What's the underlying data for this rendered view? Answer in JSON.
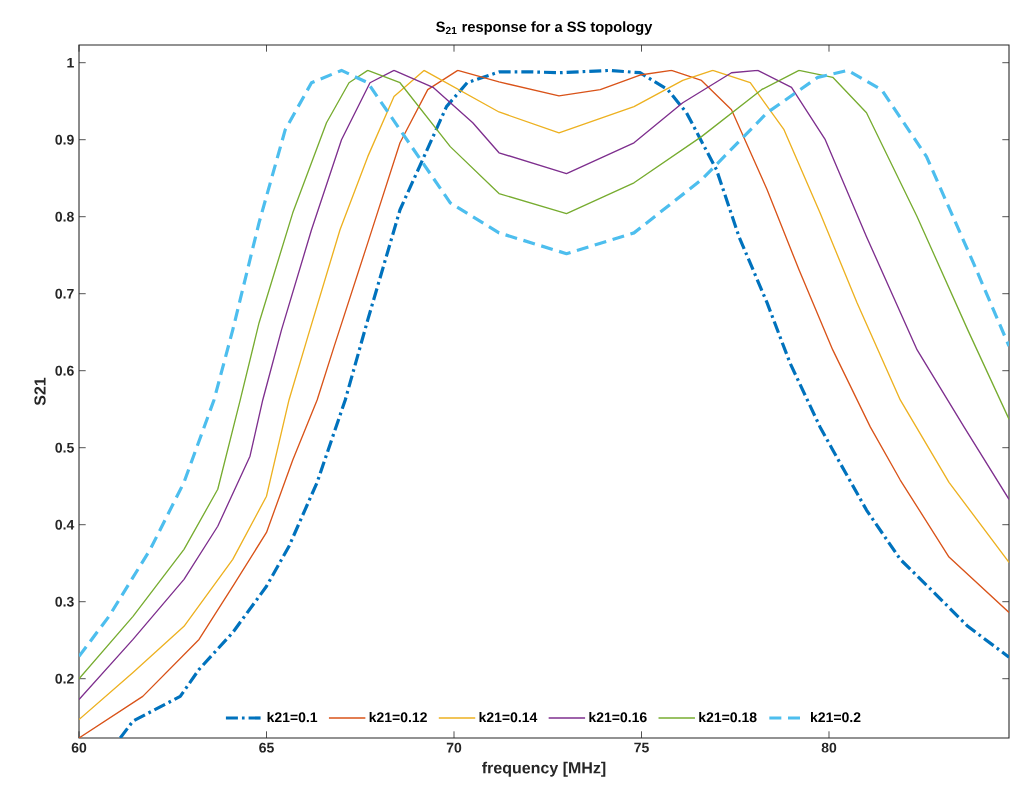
{
  "chart_data": {
    "type": "line",
    "title": "S$_{21}$ response for a SS topology",
    "xlabel": "frequency [MHz]",
    "ylabel": "S21",
    "xlim": [
      60,
      84.8
    ],
    "ylim": [
      0.123,
      1.023
    ],
    "xticks": [
      60,
      65,
      70,
      75,
      80
    ],
    "yticks": [
      0.2,
      0.3,
      0.4,
      0.5,
      0.6,
      0.7,
      0.8,
      0.9,
      1
    ],
    "grid": false,
    "legend": "bottom",
    "marker": "none",
    "series": [
      {
        "name": "k21=0.1",
        "color": "#0072bd",
        "line_style": "dashdot",
        "x": [
          61.1,
          61.44,
          62.7,
          63.2,
          64.1,
          65.0,
          65.6,
          66.35,
          67.1,
          67.7,
          68.56,
          69.2,
          69.8,
          70.35,
          71.2,
          72.1,
          72.8,
          74.16,
          74.96,
          75.7,
          76.2,
          77.0,
          77.6,
          78.35,
          78.96,
          79.76,
          80.1,
          81.0,
          81.9,
          82.8,
          83.7,
          84.8
        ],
        "values": [
          0.123,
          0.145,
          0.177,
          0.212,
          0.26,
          0.32,
          0.372,
          0.455,
          0.562,
          0.666,
          0.809,
          0.878,
          0.943,
          0.974,
          0.988,
          0.988,
          0.987,
          0.99,
          0.987,
          0.965,
          0.935,
          0.861,
          0.774,
          0.688,
          0.61,
          0.527,
          0.497,
          0.419,
          0.355,
          0.312,
          0.268,
          0.228
        ]
      },
      {
        "name": "k21=0.12",
        "color": "#d95319",
        "line_style": "solid",
        "x": [
          60,
          61.7,
          63.2,
          64.1,
          65.0,
          65.7,
          66.35,
          66.8,
          67.7,
          68.56,
          69.3,
          70.1,
          71.2,
          72.8,
          73.9,
          74.96,
          75.8,
          76.6,
          77.4,
          78.35,
          79.2,
          80.1,
          81.1,
          81.9,
          83.2,
          84.8
        ],
        "values": [
          0.123,
          0.177,
          0.251,
          0.32,
          0.39,
          0.484,
          0.562,
          0.631,
          0.766,
          0.896,
          0.965,
          0.99,
          0.975,
          0.957,
          0.965,
          0.984,
          0.99,
          0.977,
          0.939,
          0.835,
          0.731,
          0.627,
          0.527,
          0.458,
          0.358,
          0.286
        ]
      },
      {
        "name": "k21=0.14",
        "color": "#edb120",
        "line_style": "solid",
        "x": [
          60,
          61.44,
          62.8,
          64.1,
          65.0,
          65.6,
          66.1,
          66.96,
          67.7,
          68.4,
          69.2,
          71.2,
          72.8,
          74.8,
          76.1,
          76.9,
          77.9,
          78.8,
          79.76,
          80.75,
          81.9,
          83.2,
          84.8
        ],
        "values": [
          0.147,
          0.208,
          0.268,
          0.355,
          0.437,
          0.562,
          0.644,
          0.783,
          0.878,
          0.956,
          0.99,
          0.936,
          0.909,
          0.943,
          0.977,
          0.99,
          0.974,
          0.913,
          0.805,
          0.688,
          0.562,
          0.455,
          0.351
        ]
      },
      {
        "name": "k21=0.16",
        "color": "#7e2f8e",
        "line_style": "solid",
        "x": [
          60,
          61.44,
          62.8,
          63.7,
          64.56,
          64.9,
          65.4,
          66.2,
          67.0,
          67.76,
          68.4,
          69.44,
          70.5,
          71.2,
          73.0,
          74.8,
          76.1,
          77.4,
          78.1,
          79.0,
          79.9,
          81.0,
          82.35,
          83.6,
          84.8
        ],
        "values": [
          0.173,
          0.251,
          0.329,
          0.398,
          0.489,
          0.562,
          0.653,
          0.783,
          0.9,
          0.974,
          0.99,
          0.968,
          0.922,
          0.883,
          0.856,
          0.896,
          0.948,
          0.987,
          0.99,
          0.968,
          0.9,
          0.774,
          0.627,
          0.527,
          0.433
        ]
      },
      {
        "name": "k21=0.18",
        "color": "#77ac30",
        "line_style": "solid",
        "x": [
          60,
          61.44,
          62.8,
          63.7,
          64.3,
          64.8,
          65.7,
          66.6,
          67.2,
          67.7,
          68.56,
          69.9,
          71.2,
          73.0,
          74.8,
          76.6,
          78.2,
          79.2,
          80.1,
          81.0,
          82.35,
          83.7,
          84.8
        ],
        "values": [
          0.2,
          0.281,
          0.368,
          0.446,
          0.562,
          0.662,
          0.805,
          0.922,
          0.974,
          0.99,
          0.974,
          0.891,
          0.83,
          0.804,
          0.844,
          0.904,
          0.965,
          0.99,
          0.981,
          0.935,
          0.8,
          0.653,
          0.537
        ]
      },
      {
        "name": "k21=0.2",
        "color": "#4dbeee",
        "line_style": "dashed",
        "x": [
          60,
          60.8,
          61.9,
          62.8,
          63.6,
          64.1,
          64.8,
          65.5,
          66.2,
          67.0,
          67.7,
          68.56,
          69.9,
          71.2,
          73.0,
          74.8,
          76.6,
          78.35,
          79.7,
          80.5,
          81.4,
          82.6,
          83.85,
          84.8
        ],
        "values": [
          0.229,
          0.281,
          0.368,
          0.455,
          0.562,
          0.653,
          0.792,
          0.913,
          0.974,
          0.99,
          0.974,
          0.913,
          0.818,
          0.779,
          0.752,
          0.779,
          0.848,
          0.935,
          0.981,
          0.99,
          0.965,
          0.878,
          0.74,
          0.632
        ]
      }
    ]
  }
}
